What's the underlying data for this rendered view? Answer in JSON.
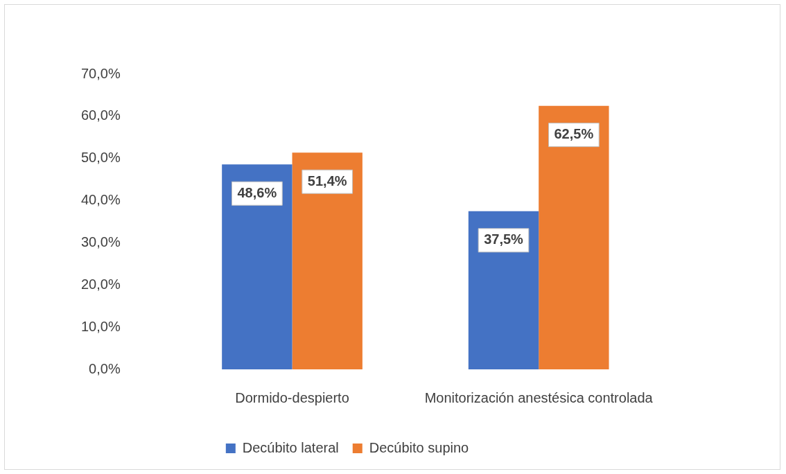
{
  "chart_data": {
    "type": "bar",
    "categories": [
      "Dormido-despierto",
      "Monitorización anestésica controlada"
    ],
    "series": [
      {
        "name": "Decúbito lateral",
        "color": "#4472c4",
        "values": [
          48.6,
          37.5
        ],
        "value_labels": [
          "48,6%",
          "37,5%"
        ]
      },
      {
        "name": "Decúbito supino",
        "color": "#ed7d31",
        "values": [
          51.4,
          62.5
        ],
        "value_labels": [
          "51,4%",
          "62,5%"
        ]
      }
    ],
    "ylim": [
      0,
      70
    ],
    "yticks": [
      {
        "value": 0,
        "label": "0,0%"
      },
      {
        "value": 10,
        "label": "10,0%"
      },
      {
        "value": 20,
        "label": "20,0%"
      },
      {
        "value": 30,
        "label": "30,0%"
      },
      {
        "value": 40,
        "label": "40,0%"
      },
      {
        "value": 50,
        "label": "50,0%"
      },
      {
        "value": 60,
        "label": "60,0%"
      },
      {
        "value": 70,
        "label": "70,0%"
      }
    ],
    "grid": false,
    "legend": "bottom"
  }
}
